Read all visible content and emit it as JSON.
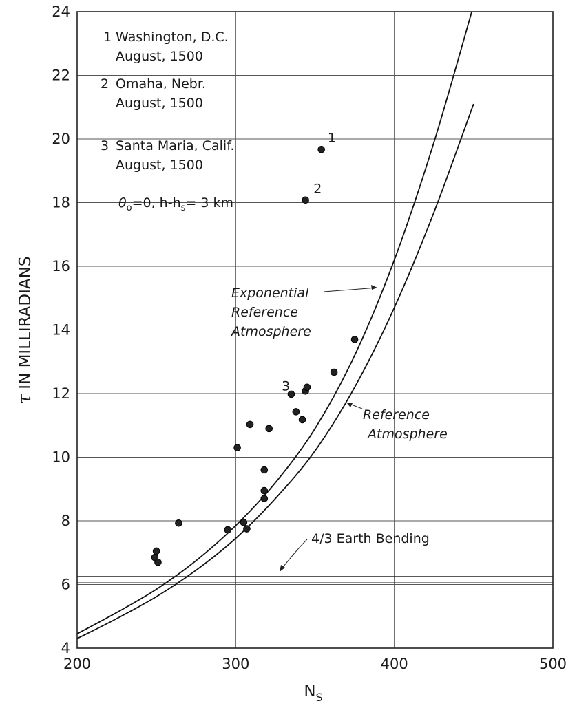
{
  "chart_data": {
    "type": "scatter",
    "xlabel_main": "N",
    "xlabel_sub": "S",
    "ylabel_symbol": "τ",
    "ylabel_text": " IN MILLIRADIANS",
    "xlim": [
      200,
      500
    ],
    "ylim": [
      4,
      24
    ],
    "grid": true,
    "x_ticks": [
      "200",
      "300",
      "400",
      "500"
    ],
    "y_ticks": [
      "4",
      "6",
      "8",
      "10",
      "12",
      "14",
      "16",
      "18",
      "20",
      "22",
      "24"
    ],
    "legend": [
      {
        "num": "1",
        "line1": "Washington, D.C.",
        "line2": "August, 1500"
      },
      {
        "num": "2",
        "line1": "Omaha, Nebr.",
        "line2": "August, 1500"
      },
      {
        "num": "3",
        "line1": "Santa Maria, Calif.",
        "line2": "August, 1500"
      }
    ],
    "condition_theta": "θ",
    "condition_theta_sub": "o",
    "condition_rest": "=0,  h-h",
    "condition_h_sub": "s",
    "condition_tail": "= 3 km",
    "points": [
      {
        "x": 249,
        "y": 6.85
      },
      {
        "x": 250,
        "y": 7.05
      },
      {
        "x": 251,
        "y": 6.7
      },
      {
        "x": 264,
        "y": 7.93
      },
      {
        "x": 295,
        "y": 7.72
      },
      {
        "x": 301,
        "y": 10.3
      },
      {
        "x": 305,
        "y": 7.95
      },
      {
        "x": 307,
        "y": 7.75
      },
      {
        "x": 309,
        "y": 11.03
      },
      {
        "x": 318,
        "y": 8.7
      },
      {
        "x": 318,
        "y": 8.95
      },
      {
        "x": 318,
        "y": 9.6
      },
      {
        "x": 321,
        "y": 10.9
      },
      {
        "x": 335,
        "y": 11.98
      },
      {
        "x": 338,
        "y": 11.43
      },
      {
        "x": 342,
        "y": 11.18
      },
      {
        "x": 344,
        "y": 12.08
      },
      {
        "x": 345,
        "y": 12.2
      },
      {
        "x": 344,
        "y": 18.08
      },
      {
        "x": 354,
        "y": 19.67
      },
      {
        "x": 362,
        "y": 12.67
      },
      {
        "x": 375,
        "y": 13.7
      }
    ],
    "point_labels": [
      {
        "text": "1",
        "x": 358,
        "y": 19.9
      },
      {
        "text": "2",
        "x": 349,
        "y": 18.3
      },
      {
        "text": "3",
        "x": 329,
        "y": 12.1
      }
    ],
    "curves": [
      {
        "name": "Exponential Reference Atmosphere",
        "x": [
          200,
          225,
          250,
          275,
          300,
          325,
          350,
          375,
          400,
          425,
          450
        ],
        "y": [
          4.45,
          5.12,
          5.85,
          6.75,
          7.85,
          9.2,
          10.9,
          13.2,
          16.2,
          19.9,
          24.2
        ]
      },
      {
        "name": "Reference Atmosphere",
        "x": [
          200,
          225,
          250,
          275,
          300,
          325,
          350,
          375,
          400,
          425,
          450
        ],
        "y": [
          4.3,
          4.93,
          5.62,
          6.45,
          7.45,
          8.7,
          10.2,
          12.2,
          14.7,
          17.7,
          21.1
        ]
      }
    ],
    "horizontal_lines": [
      6.25,
      6.05
    ],
    "annotations": {
      "exponential_line1": "Exponential",
      "exponential_line2": "Reference",
      "exponential_line3": "Atmosphere",
      "reference_line1": "Reference",
      "reference_line2": "Atmosphere",
      "earth_bending": "4/3 Earth Bending"
    }
  }
}
